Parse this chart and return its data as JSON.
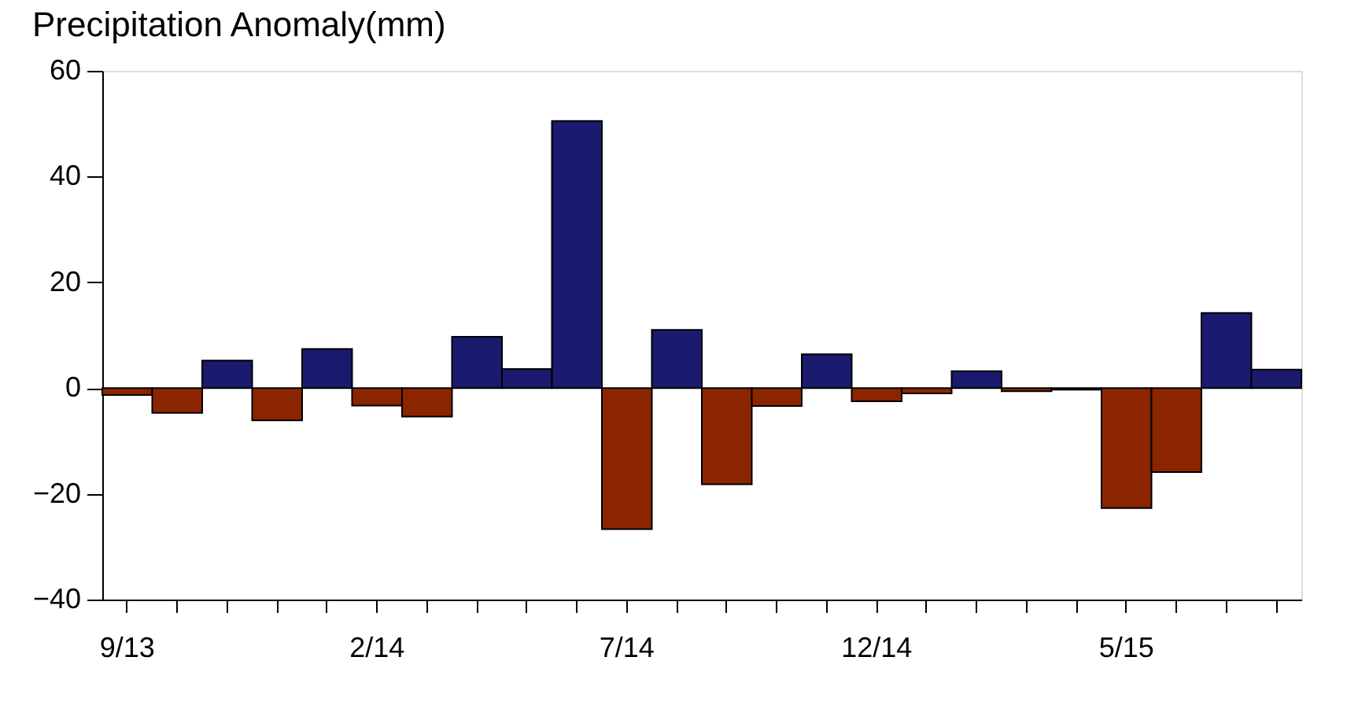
{
  "chart_data": {
    "type": "bar",
    "title": "Precipitation Anomaly(mm)",
    "categories": [
      "9/13",
      null,
      null,
      null,
      null,
      "2/14",
      null,
      null,
      null,
      null,
      "7/14",
      null,
      null,
      null,
      null,
      "12/14",
      null,
      null,
      null,
      null,
      "5/15",
      null,
      null,
      null
    ],
    "values": [
      -1.3,
      -4.7,
      5.2,
      -6.1,
      7.4,
      -3.3,
      -5.4,
      9.7,
      3.6,
      50.5,
      -26.7,
      11.0,
      -18.2,
      -3.4,
      6.4,
      -2.5,
      -1.0,
      3.2,
      -0.6,
      -0.3,
      -22.7,
      -15.9,
      14.2,
      3.5
    ],
    "colors": [
      "#8b2500",
      "#8b2500",
      "#1a1a6e",
      "#8b2500",
      "#1a1a6e",
      "#8b2500",
      "#8b2500",
      "#1a1a6e",
      "#1a1a6e",
      "#1a1a6e",
      "#8b2500",
      "#1a1a6e",
      "#8b2500",
      "#8b2500",
      "#1a1a6e",
      "#8b2500",
      "#8b2500",
      "#1a1a6e",
      "#8b2500",
      "#8b2500",
      "#8b2500",
      "#8b2500",
      "#1a1a6e",
      "#1a1a6e"
    ],
    "ylim": [
      -40,
      60
    ],
    "yticks": [
      -40,
      -20,
      0,
      20,
      40,
      60
    ],
    "grid": false
  }
}
